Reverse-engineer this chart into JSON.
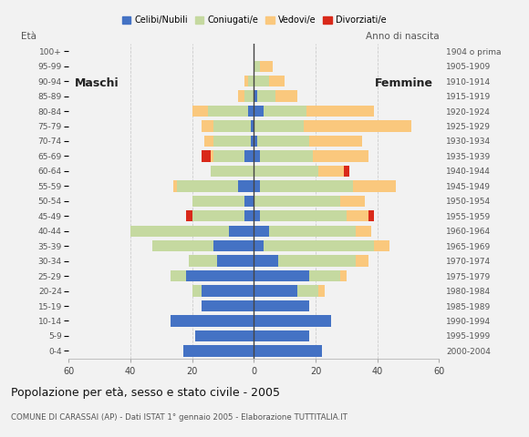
{
  "age_groups": [
    "0-4",
    "5-9",
    "10-14",
    "15-19",
    "20-24",
    "25-29",
    "30-34",
    "35-39",
    "40-44",
    "45-49",
    "50-54",
    "55-59",
    "60-64",
    "65-69",
    "70-74",
    "75-79",
    "80-84",
    "85-89",
    "90-94",
    "95-99",
    "100+"
  ],
  "birth_years": [
    "2000-2004",
    "1995-1999",
    "1990-1994",
    "1985-1989",
    "1980-1984",
    "1975-1979",
    "1970-1974",
    "1965-1969",
    "1960-1964",
    "1955-1959",
    "1950-1954",
    "1945-1949",
    "1940-1944",
    "1935-1939",
    "1930-1934",
    "1925-1929",
    "1920-1924",
    "1915-1919",
    "1910-1914",
    "1905-1909",
    "1904 o prima"
  ],
  "males": {
    "celibe": [
      23,
      19,
      27,
      17,
      17,
      22,
      12,
      13,
      8,
      3,
      3,
      5,
      0,
      3,
      1,
      1,
      2,
      0,
      0,
      0,
      0
    ],
    "coniugato": [
      0,
      0,
      0,
      0,
      3,
      5,
      9,
      20,
      32,
      17,
      17,
      20,
      14,
      10,
      12,
      12,
      13,
      3,
      2,
      0,
      0
    ],
    "vedovo": [
      0,
      0,
      0,
      0,
      0,
      0,
      0,
      0,
      0,
      0,
      0,
      1,
      0,
      1,
      3,
      4,
      5,
      2,
      1,
      0,
      0
    ],
    "divorziato": [
      0,
      0,
      0,
      0,
      0,
      0,
      0,
      0,
      0,
      2,
      0,
      0,
      0,
      3,
      0,
      0,
      0,
      0,
      0,
      0,
      0
    ]
  },
  "females": {
    "nubile": [
      22,
      18,
      25,
      18,
      14,
      18,
      8,
      3,
      5,
      2,
      0,
      2,
      0,
      2,
      1,
      0,
      3,
      1,
      0,
      0,
      0
    ],
    "coniugata": [
      0,
      0,
      0,
      0,
      7,
      10,
      25,
      36,
      28,
      28,
      28,
      30,
      21,
      17,
      17,
      16,
      14,
      6,
      5,
      2,
      0
    ],
    "vedova": [
      0,
      0,
      0,
      0,
      2,
      2,
      4,
      5,
      5,
      7,
      8,
      14,
      8,
      18,
      17,
      35,
      22,
      7,
      5,
      4,
      0
    ],
    "divorziata": [
      0,
      0,
      0,
      0,
      0,
      0,
      0,
      0,
      0,
      2,
      0,
      0,
      2,
      0,
      0,
      0,
      0,
      0,
      0,
      0,
      0
    ]
  },
  "colors": {
    "celibe": "#4472C4",
    "coniugato": "#C5D9A0",
    "vedovo": "#FAC87D",
    "divorziato": "#D9291A"
  },
  "title": "Popolazione per età, sesso e stato civile - 2005",
  "subtitle": "COMUNE DI CARASSAI (AP) - Dati ISTAT 1° gennaio 2005 - Elaborazione TUTTITALIA.IT",
  "label_maschi": "Maschi",
  "label_femmine": "Femmine",
  "label_eta": "Età",
  "label_anno": "Anno di nascita",
  "xlim": 60,
  "background_color": "#f0f0f0",
  "plot_background": "#f0f0f0",
  "legend_labels": [
    "Celibi/Nubili",
    "Coniugati/e",
    "Vedovi/e",
    "Divorziati/e"
  ]
}
